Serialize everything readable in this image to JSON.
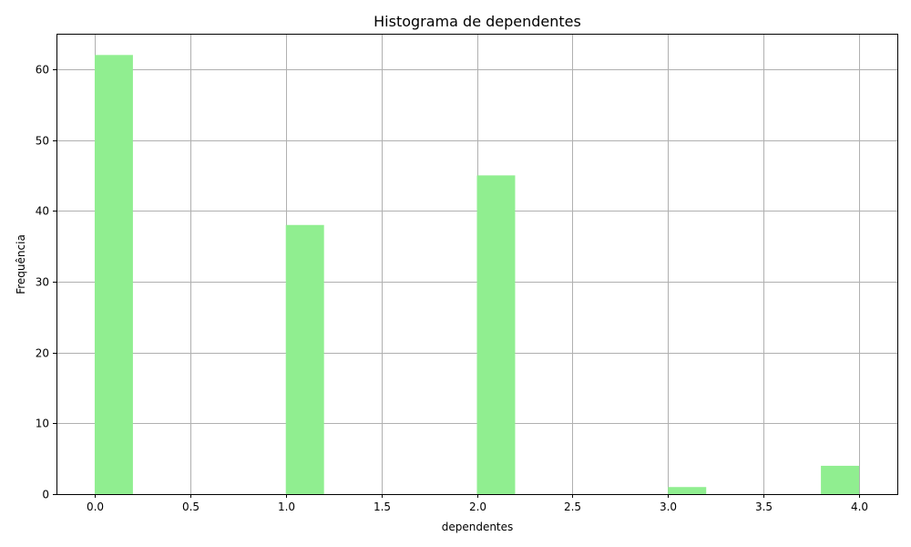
{
  "chart_data": {
    "type": "bar",
    "title": "Histograma de dependentes",
    "xlabel": "dependentes",
    "ylabel": "Frequência",
    "xlim": [
      -0.2,
      4.2
    ],
    "ylim": [
      0,
      65
    ],
    "grid": true,
    "bar_color": "#90ee90",
    "grid_color": "#b0b0b0",
    "bins": [
      {
        "x0": 0.0,
        "x1": 0.2,
        "count": 62
      },
      {
        "x0": 1.0,
        "x1": 1.2,
        "count": 38
      },
      {
        "x0": 2.0,
        "x1": 2.2,
        "count": 45
      },
      {
        "x0": 3.0,
        "x1": 3.2,
        "count": 1
      },
      {
        "x0": 3.8,
        "x1": 4.0,
        "count": 4
      }
    ],
    "x_ticks": [
      "0.0",
      "0.5",
      "1.0",
      "1.5",
      "2.0",
      "2.5",
      "3.0",
      "3.5",
      "4.0"
    ],
    "y_ticks": [
      "0",
      "10",
      "20",
      "30",
      "40",
      "50",
      "60"
    ]
  }
}
